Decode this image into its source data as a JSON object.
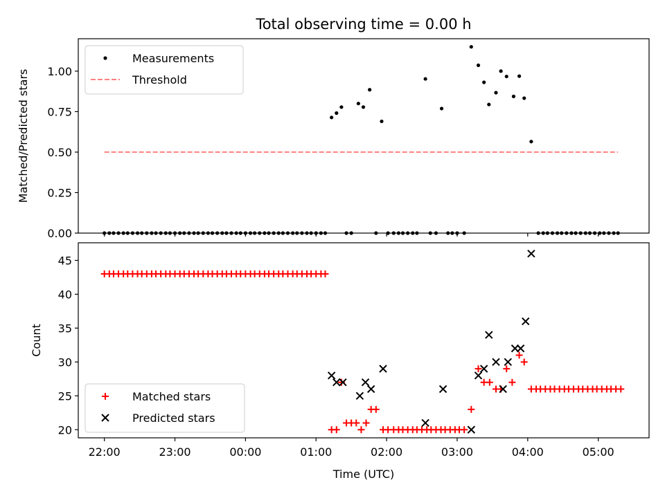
{
  "chart_data": {
    "title": "Total observing time = 0.00 h",
    "x_axis": {
      "label": "Time (UTC)",
      "range": [
        -0.37,
        7.72
      ],
      "tick_positions": [
        0,
        1,
        2,
        3,
        4,
        5,
        6,
        7
      ],
      "tick_labels": [
        "22:00",
        "23:00",
        "00:00",
        "01:00",
        "02:00",
        "03:00",
        "04:00",
        "05:00"
      ]
    },
    "panels": [
      {
        "type": "scatter",
        "ylabel": "Matched/Predicted stars",
        "ylim": [
          0.0,
          1.2
        ],
        "yticks": [
          0.0,
          0.25,
          0.5,
          0.75,
          1.0
        ],
        "ytick_labels": [
          "0.00",
          "0.25",
          "0.50",
          "0.75",
          "1.00"
        ],
        "legend_position": "upper-left",
        "series": [
          {
            "name": "Measurements",
            "marker": "dot",
            "color": "#000000",
            "points": [
              [
                0.0,
                0
              ],
              [
                0.07,
                0
              ],
              [
                0.13,
                0
              ],
              [
                0.2,
                0
              ],
              [
                0.27,
                0
              ],
              [
                0.33,
                0
              ],
              [
                0.4,
                0
              ],
              [
                0.47,
                0
              ],
              [
                0.53,
                0
              ],
              [
                0.6,
                0
              ],
              [
                0.67,
                0
              ],
              [
                0.73,
                0
              ],
              [
                0.8,
                0
              ],
              [
                0.87,
                0
              ],
              [
                0.93,
                0
              ],
              [
                1.0,
                0
              ],
              [
                1.07,
                0
              ],
              [
                1.13,
                0
              ],
              [
                1.2,
                0
              ],
              [
                1.27,
                0
              ],
              [
                1.33,
                0
              ],
              [
                1.4,
                0
              ],
              [
                1.47,
                0
              ],
              [
                1.53,
                0
              ],
              [
                1.6,
                0
              ],
              [
                1.67,
                0
              ],
              [
                1.73,
                0
              ],
              [
                1.8,
                0
              ],
              [
                1.87,
                0
              ],
              [
                1.93,
                0
              ],
              [
                2.0,
                0
              ],
              [
                2.07,
                0
              ],
              [
                2.13,
                0
              ],
              [
                2.2,
                0
              ],
              [
                2.27,
                0
              ],
              [
                2.33,
                0
              ],
              [
                2.4,
                0
              ],
              [
                2.47,
                0
              ],
              [
                2.53,
                0
              ],
              [
                2.6,
                0
              ],
              [
                2.67,
                0
              ],
              [
                2.73,
                0
              ],
              [
                2.8,
                0
              ],
              [
                2.87,
                0
              ],
              [
                2.93,
                0
              ],
              [
                3.0,
                0
              ],
              [
                3.07,
                0
              ],
              [
                3.13,
                0
              ],
              [
                3.22,
                0.714
              ],
              [
                3.29,
                0.741
              ],
              [
                3.36,
                0.778
              ],
              [
                3.43,
                0
              ],
              [
                3.5,
                0
              ],
              [
                3.6,
                0.8
              ],
              [
                3.67,
                0.778
              ],
              [
                3.76,
                0.885
              ],
              [
                3.85,
                0
              ],
              [
                3.93,
                0.69
              ],
              [
                4.02,
                0
              ],
              [
                4.1,
                0
              ],
              [
                4.17,
                0
              ],
              [
                4.23,
                0
              ],
              [
                4.3,
                0
              ],
              [
                4.37,
                0
              ],
              [
                4.43,
                0
              ],
              [
                4.55,
                0.952
              ],
              [
                4.62,
                0
              ],
              [
                4.7,
                0
              ],
              [
                4.78,
                0.769
              ],
              [
                4.87,
                0
              ],
              [
                4.93,
                0
              ],
              [
                5.0,
                0
              ],
              [
                5.1,
                0
              ],
              [
                5.2,
                1.15
              ],
              [
                5.3,
                1.036
              ],
              [
                5.38,
                0.931
              ],
              [
                5.45,
                0.794
              ],
              [
                5.55,
                0.867
              ],
              [
                5.62,
                1.0
              ],
              [
                5.7,
                0.967
              ],
              [
                5.8,
                0.844
              ],
              [
                5.88,
                0.969
              ],
              [
                5.95,
                0.833
              ],
              [
                6.05,
                0.565
              ],
              [
                6.15,
                0
              ],
              [
                6.22,
                0
              ],
              [
                6.28,
                0
              ],
              [
                6.35,
                0
              ],
              [
                6.42,
                0
              ],
              [
                6.48,
                0
              ],
              [
                6.55,
                0
              ],
              [
                6.62,
                0
              ],
              [
                6.68,
                0
              ],
              [
                6.75,
                0
              ],
              [
                6.82,
                0
              ],
              [
                6.88,
                0
              ],
              [
                6.95,
                0
              ],
              [
                7.02,
                0
              ],
              [
                7.08,
                0
              ],
              [
                7.15,
                0
              ],
              [
                7.22,
                0
              ],
              [
                7.28,
                0
              ]
            ]
          },
          {
            "name": "Threshold",
            "type": "line",
            "style": "dashed",
            "color": "#ff7f7f",
            "points": [
              [
                0.0,
                0.5
              ],
              [
                7.28,
                0.5
              ]
            ]
          }
        ]
      },
      {
        "type": "scatter",
        "ylabel": "Count",
        "ylim": [
          18.8,
          47.6
        ],
        "yticks": [
          20,
          25,
          30,
          35,
          40,
          45
        ],
        "ytick_labels": [
          "20",
          "25",
          "30",
          "35",
          "40",
          "45"
        ],
        "legend_position": "lower-left",
        "series": [
          {
            "name": "Matched stars",
            "marker": "plus",
            "color": "#ff0000",
            "points": [
              [
                0.0,
                43
              ],
              [
                0.07,
                43
              ],
              [
                0.13,
                43
              ],
              [
                0.2,
                43
              ],
              [
                0.27,
                43
              ],
              [
                0.33,
                43
              ],
              [
                0.4,
                43
              ],
              [
                0.47,
                43
              ],
              [
                0.53,
                43
              ],
              [
                0.6,
                43
              ],
              [
                0.67,
                43
              ],
              [
                0.73,
                43
              ],
              [
                0.8,
                43
              ],
              [
                0.87,
                43
              ],
              [
                0.93,
                43
              ],
              [
                1.0,
                43
              ],
              [
                1.07,
                43
              ],
              [
                1.13,
                43
              ],
              [
                1.2,
                43
              ],
              [
                1.27,
                43
              ],
              [
                1.33,
                43
              ],
              [
                1.4,
                43
              ],
              [
                1.47,
                43
              ],
              [
                1.53,
                43
              ],
              [
                1.6,
                43
              ],
              [
                1.67,
                43
              ],
              [
                1.73,
                43
              ],
              [
                1.8,
                43
              ],
              [
                1.87,
                43
              ],
              [
                1.93,
                43
              ],
              [
                2.0,
                43
              ],
              [
                2.07,
                43
              ],
              [
                2.13,
                43
              ],
              [
                2.2,
                43
              ],
              [
                2.27,
                43
              ],
              [
                2.33,
                43
              ],
              [
                2.4,
                43
              ],
              [
                2.47,
                43
              ],
              [
                2.53,
                43
              ],
              [
                2.6,
                43
              ],
              [
                2.67,
                43
              ],
              [
                2.73,
                43
              ],
              [
                2.8,
                43
              ],
              [
                2.87,
                43
              ],
              [
                2.93,
                43
              ],
              [
                3.0,
                43
              ],
              [
                3.07,
                43
              ],
              [
                3.13,
                43
              ],
              [
                3.22,
                20
              ],
              [
                3.29,
                20
              ],
              [
                3.36,
                27
              ],
              [
                3.43,
                21
              ],
              [
                3.5,
                21
              ],
              [
                3.57,
                21
              ],
              [
                3.64,
                20
              ],
              [
                3.71,
                21
              ],
              [
                3.78,
                23
              ],
              [
                3.85,
                23
              ],
              [
                3.95,
                20
              ],
              [
                4.02,
                20
              ],
              [
                4.1,
                20
              ],
              [
                4.17,
                20
              ],
              [
                4.23,
                20
              ],
              [
                4.3,
                20
              ],
              [
                4.37,
                20
              ],
              [
                4.43,
                20
              ],
              [
                4.5,
                20
              ],
              [
                4.57,
                20
              ],
              [
                4.63,
                20
              ],
              [
                4.7,
                20
              ],
              [
                4.77,
                20
              ],
              [
                4.83,
                20
              ],
              [
                4.9,
                20
              ],
              [
                4.97,
                20
              ],
              [
                5.03,
                20
              ],
              [
                5.1,
                20
              ],
              [
                5.2,
                23
              ],
              [
                5.3,
                29
              ],
              [
                5.38,
                27
              ],
              [
                5.46,
                27
              ],
              [
                5.55,
                26
              ],
              [
                5.62,
                26
              ],
              [
                5.7,
                29
              ],
              [
                5.78,
                27
              ],
              [
                5.88,
                31
              ],
              [
                5.95,
                30
              ],
              [
                6.05,
                26
              ],
              [
                6.12,
                26
              ],
              [
                6.18,
                26
              ],
              [
                6.25,
                26
              ],
              [
                6.32,
                26
              ],
              [
                6.38,
                26
              ],
              [
                6.45,
                26
              ],
              [
                6.52,
                26
              ],
              [
                6.58,
                26
              ],
              [
                6.65,
                26
              ],
              [
                6.72,
                26
              ],
              [
                6.78,
                26
              ],
              [
                6.85,
                26
              ],
              [
                6.92,
                26
              ],
              [
                6.98,
                26
              ],
              [
                7.05,
                26
              ],
              [
                7.12,
                26
              ],
              [
                7.18,
                26
              ],
              [
                7.25,
                26
              ],
              [
                7.32,
                26
              ]
            ]
          },
          {
            "name": "Predicted stars",
            "marker": "x",
            "color": "#000000",
            "points": [
              [
                3.22,
                28
              ],
              [
                3.29,
                27
              ],
              [
                3.38,
                27
              ],
              [
                3.62,
                25
              ],
              [
                3.7,
                27
              ],
              [
                3.78,
                26
              ],
              [
                3.95,
                29
              ],
              [
                4.55,
                21
              ],
              [
                4.8,
                26
              ],
              [
                5.2,
                20
              ],
              [
                5.3,
                28
              ],
              [
                5.38,
                29
              ],
              [
                5.45,
                34
              ],
              [
                5.55,
                30
              ],
              [
                5.65,
                26
              ],
              [
                5.72,
                30
              ],
              [
                5.82,
                32
              ],
              [
                5.9,
                32
              ],
              [
                5.97,
                36
              ],
              [
                6.05,
                46
              ]
            ]
          }
        ]
      }
    ]
  }
}
